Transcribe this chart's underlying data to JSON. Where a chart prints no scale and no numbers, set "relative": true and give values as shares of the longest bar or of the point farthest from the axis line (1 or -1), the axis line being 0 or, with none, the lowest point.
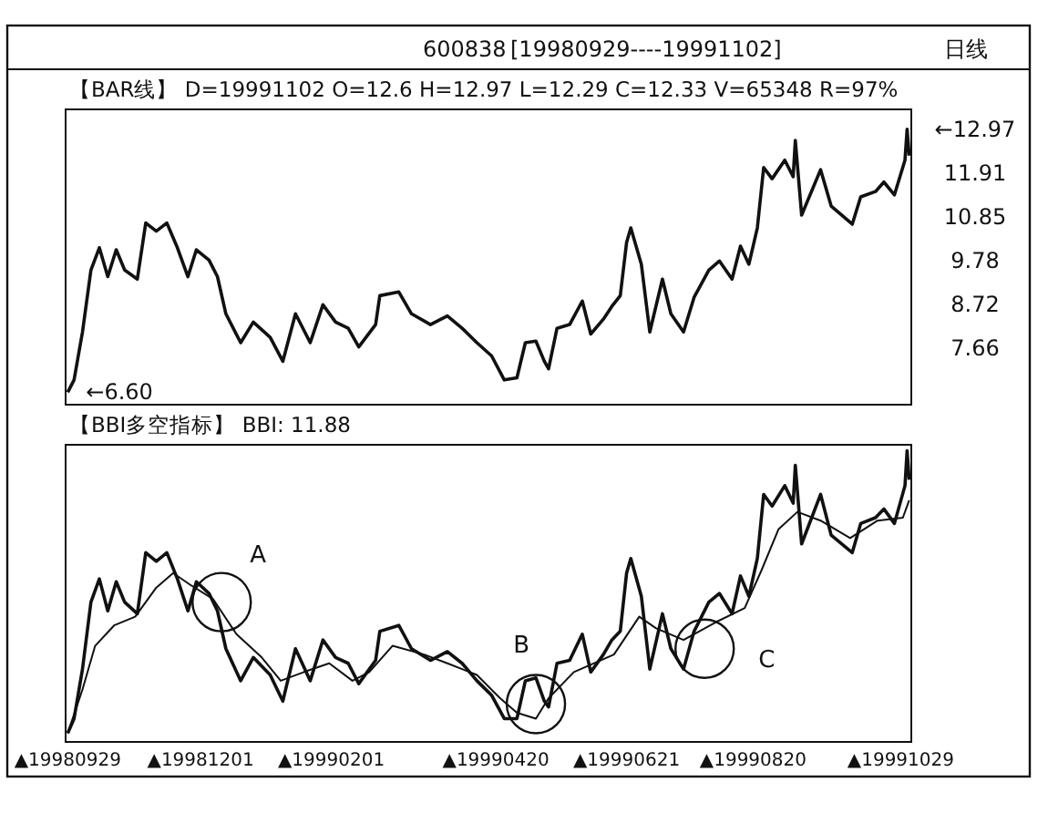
{
  "chart_data": [
    {
      "type": "other",
      "title": "600838",
      "subtitle": "[19980929----19991102]",
      "annotations": [
        "日线"
      ]
    },
    {
      "type": "line",
      "title": "【BAR线】 D=19991102 O=12.6 H=12.97 L=12.29 C=12.33 V=65348 R=97%",
      "color": "#111111",
      "tick_labels": "y",
      "x": [
        "1998-09-29",
        "1998-10-02",
        "1998-10-06",
        "1998-10-10",
        "1998-10-14",
        "1998-10-18",
        "1998-10-22",
        "1998-10-26",
        "1998-11-01",
        "1998-11-05",
        "1998-11-10",
        "1998-11-15",
        "1998-11-20",
        "1998-11-25",
        "1998-11-29",
        "1998-12-05",
        "1998-12-09",
        "1998-12-13",
        "1998-12-20",
        "1998-12-26",
        "1999-01-03",
        "1999-01-09",
        "1999-01-15",
        "1999-01-22",
        "1999-01-28",
        "1999-02-03",
        "1999-02-09",
        "1999-02-14",
        "1999-02-22",
        "1999-02-24",
        "1999-03-05",
        "1999-03-11",
        "1999-03-20",
        "1999-03-28",
        "1999-04-04",
        "1999-04-11",
        "1999-04-18",
        "1999-04-24",
        "1999-04-30",
        "1999-05-04",
        "1999-05-09",
        "1999-05-13",
        "1999-05-15",
        "1999-05-19",
        "1999-05-25",
        "1999-05-31",
        "1999-06-04",
        "1999-06-10",
        "1999-06-14",
        "1999-06-18",
        "1999-06-21",
        "1999-06-23",
        "1999-06-28",
        "1999-07-02",
        "1999-07-08",
        "1999-07-12",
        "1999-07-18",
        "1999-07-23",
        "1999-07-30",
        "1999-08-04",
        "1999-08-10",
        "1999-08-14",
        "1999-08-18",
        "1999-08-22",
        "1999-08-25",
        "1999-08-29",
        "1999-09-04",
        "1999-09-08",
        "1999-09-09",
        "1999-09-12",
        "1999-09-21",
        "1999-09-26",
        "1999-10-06",
        "1999-10-10",
        "1999-10-17",
        "1999-10-21",
        "1999-10-26",
        "1999-10-31",
        "1999-11-01",
        "1999-11-02"
      ],
      "values": [
        6.6,
        6.9,
        8.06,
        9.56,
        10.1,
        9.4,
        10.05,
        9.56,
        9.34,
        10.7,
        10.5,
        10.7,
        10.1,
        9.4,
        10.05,
        9.8,
        9.4,
        8.5,
        7.8,
        8.3,
        7.93,
        7.35,
        8.5,
        7.8,
        8.72,
        8.3,
        8.15,
        7.7,
        8.24,
        8.94,
        9.03,
        8.5,
        8.24,
        8.45,
        8.15,
        7.8,
        7.48,
        6.9,
        6.95,
        7.8,
        7.84,
        7.35,
        7.17,
        8.15,
        8.24,
        8.81,
        8.01,
        8.37,
        8.68,
        8.94,
        10.23,
        10.58,
        9.7,
        8.06,
        9.34,
        8.5,
        8.06,
        8.9,
        9.56,
        9.78,
        9.34,
        10.14,
        9.7,
        10.58,
        12.04,
        11.77,
        12.22,
        11.82,
        12.7,
        10.89,
        11.99,
        11.11,
        10.67,
        11.33,
        11.46,
        11.69,
        11.38,
        12.22,
        12.97,
        12.33
      ],
      "xlim": [
        "1998-09-28",
        "1999-11-03"
      ],
      "ylim": [
        6.3,
        13.45
      ],
      "yticks": [
        {
          "value": 12.97,
          "label": "←12.97"
        },
        11.91,
        10.85,
        9.78,
        8.72,
        7.66
      ],
      "annotations": [
        {
          "text": "←6.60",
          "x": "1998-09-29",
          "y": 6.6
        }
      ]
    },
    {
      "type": "line",
      "title": "【BBI多空指标】 BBI: 11.88",
      "relative": true,
      "tick_labels": "x",
      "xlim": [
        "1998-09-28",
        "1999-11-03"
      ],
      "xticks": [
        {
          "value": "1998-09-29",
          "label": "▲19980929"
        },
        {
          "value": "1998-12-01",
          "label": "▲19981201"
        },
        {
          "value": "1999-02-01",
          "label": "▲19990201"
        },
        {
          "value": "1999-04-20",
          "label": "▲19990420"
        },
        {
          "value": "1999-06-21",
          "label": "▲19990621"
        },
        {
          "value": "1999-08-20",
          "label": "▲19990820"
        },
        {
          "value": "1999-10-29",
          "label": "▲19991029"
        }
      ],
      "series": [
        {
          "color": "#111111",
          "x": [
            "1998-09-29",
            "1998-10-02",
            "1998-10-06",
            "1998-10-10",
            "1998-10-14",
            "1998-10-18",
            "1998-10-22",
            "1998-10-26",
            "1998-11-01",
            "1998-11-05",
            "1998-11-10",
            "1998-11-15",
            "1998-11-20",
            "1998-11-25",
            "1998-11-29",
            "1998-12-05",
            "1998-12-09",
            "1998-12-13",
            "1998-12-20",
            "1998-12-26",
            "1999-01-03",
            "1999-01-09",
            "1999-01-15",
            "1999-01-22",
            "1999-01-28",
            "1999-02-03",
            "1999-02-09",
            "1999-02-14",
            "1999-02-22",
            "1999-02-24",
            "1999-03-05",
            "1999-03-11",
            "1999-03-20",
            "1999-03-28",
            "1999-04-04",
            "1999-04-11",
            "1999-04-18",
            "1999-04-24",
            "1999-04-30",
            "1999-05-04",
            "1999-05-09",
            "1999-05-13",
            "1999-05-15",
            "1999-05-19",
            "1999-05-25",
            "1999-05-31",
            "1999-06-04",
            "1999-06-10",
            "1999-06-14",
            "1999-06-18",
            "1999-06-21",
            "1999-06-23",
            "1999-06-28",
            "1999-07-02",
            "1999-07-08",
            "1999-07-12",
            "1999-07-18",
            "1999-07-23",
            "1999-07-30",
            "1999-08-04",
            "1999-08-10",
            "1999-08-14",
            "1999-08-18",
            "1999-08-22",
            "1999-08-25",
            "1999-08-29",
            "1999-09-04",
            "1999-09-08",
            "1999-09-09",
            "1999-09-12",
            "1999-09-21",
            "1999-09-26",
            "1999-10-06",
            "1999-10-10",
            "1999-10-17",
            "1999-10-21",
            "1999-10-26",
            "1999-10-31",
            "1999-11-01",
            "1999-11-02"
          ],
          "values": [
            0.03,
            0.08,
            0.25,
            0.48,
            0.56,
            0.45,
            0.55,
            0.48,
            0.44,
            0.65,
            0.62,
            0.65,
            0.56,
            0.45,
            0.55,
            0.51,
            0.45,
            0.32,
            0.21,
            0.29,
            0.23,
            0.14,
            0.32,
            0.21,
            0.35,
            0.29,
            0.27,
            0.2,
            0.28,
            0.38,
            0.4,
            0.32,
            0.28,
            0.31,
            0.27,
            0.21,
            0.16,
            0.08,
            0.08,
            0.21,
            0.22,
            0.14,
            0.12,
            0.27,
            0.28,
            0.37,
            0.24,
            0.3,
            0.35,
            0.38,
            0.58,
            0.63,
            0.5,
            0.25,
            0.44,
            0.32,
            0.25,
            0.38,
            0.48,
            0.51,
            0.44,
            0.57,
            0.5,
            0.63,
            0.85,
            0.81,
            0.88,
            0.82,
            0.95,
            0.68,
            0.85,
            0.71,
            0.65,
            0.75,
            0.77,
            0.8,
            0.75,
            0.88,
            1.0,
            0.9
          ]
        },
        {
          "color": "#111111",
          "x": [
            "1998-09-29",
            "1998-10-06",
            "1998-10-12",
            "1998-10-21",
            "1998-10-31",
            "1998-11-10",
            "1998-11-18",
            "1998-11-26",
            "1998-12-07",
            "1998-12-18",
            "1998-12-30",
            "1999-01-08",
            "1999-01-19",
            "1999-01-31",
            "1999-02-11",
            "1999-02-19",
            "1999-03-02",
            "1999-03-17",
            "1999-03-28",
            "1999-04-11",
            "1999-04-22",
            "1999-04-30",
            "1999-05-09",
            "1999-05-15",
            "1999-05-27",
            "1999-06-15",
            "1999-06-27",
            "1999-07-05",
            "1999-07-18",
            "1999-08-02",
            "1999-08-16",
            "1999-08-24",
            "1999-09-01",
            "1999-09-10",
            "1999-09-21",
            "1999-10-05",
            "1999-10-18",
            "1999-10-30",
            "1999-11-02"
          ],
          "values": [
            0.03,
            0.18,
            0.33,
            0.4,
            0.43,
            0.53,
            0.58,
            0.54,
            0.49,
            0.37,
            0.29,
            0.21,
            0.24,
            0.27,
            0.21,
            0.24,
            0.33,
            0.3,
            0.27,
            0.23,
            0.15,
            0.1,
            0.08,
            0.15,
            0.24,
            0.3,
            0.43,
            0.39,
            0.35,
            0.41,
            0.46,
            0.59,
            0.73,
            0.79,
            0.76,
            0.7,
            0.76,
            0.77,
            0.83
          ]
        }
      ],
      "annotations": [
        {
          "text": "A",
          "x": "1998-12-11",
          "y": 0.48
        },
        {
          "text": "B",
          "x": "1999-05-09",
          "y": 0.13
        },
        {
          "text": "C",
          "x": "1999-07-28",
          "y": 0.32
        }
      ]
    }
  ]
}
